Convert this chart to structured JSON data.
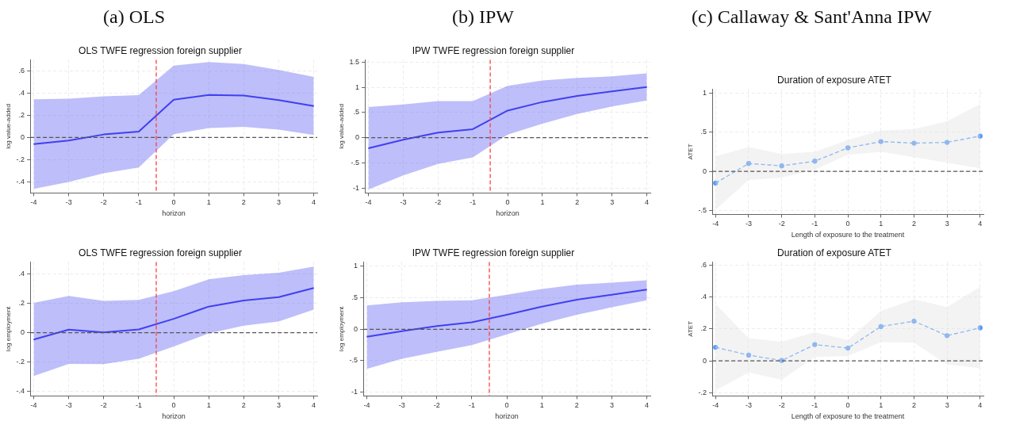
{
  "chart_data": [
    {
      "type": "line",
      "annotations": [
        "(a) OLS"
      ],
      "title": "OLS TWFE regression foreign supplier",
      "xlabel": "horizon",
      "ylabel": "log value-added",
      "x": [
        -4,
        -3,
        -2,
        -1,
        0,
        1,
        2,
        3,
        4
      ],
      "series": [
        {
          "color": "#1a1aee",
          "values": [
            -0.06,
            -0.027,
            0.027,
            0.053,
            0.34,
            0.383,
            0.378,
            0.337,
            0.284
          ],
          "lower": [
            -0.463,
            -0.4,
            -0.322,
            -0.27,
            0.029,
            0.085,
            0.095,
            0.07,
            0.022
          ],
          "upper": [
            0.344,
            0.349,
            0.371,
            0.381,
            0.647,
            0.679,
            0.662,
            0.608,
            0.545
          ]
        }
      ],
      "xlim": [
        -4.1,
        4.1
      ],
      "xticks": [
        -4,
        -3,
        -2,
        -1,
        0,
        1,
        2,
        3,
        4
      ],
      "ylim": [
        -0.5,
        0.7
      ],
      "yticks": [
        {
          "value": -0.4,
          "label": "-.4"
        },
        {
          "value": -0.2,
          "label": "-.2"
        },
        0,
        {
          "value": 0.2,
          "label": ".2"
        },
        {
          "value": 0.4,
          "label": ".4"
        },
        {
          "value": 0.6,
          "label": ".6"
        }
      ],
      "ref_lines": [
        {
          "axis": "y",
          "value": 0,
          "color": "#555555",
          "line_style": "dashed"
        },
        {
          "axis": "x",
          "value": -0.5,
          "color": "#ff4040",
          "line_style": "dashed"
        }
      ],
      "grid": true,
      "legend": false,
      "marker": "none",
      "line_style": "solid"
    },
    {
      "type": "line",
      "annotations": [
        "(b) IPW"
      ],
      "title": "IPW TWFE regression foreign supplier",
      "xlabel": "horizon",
      "ylabel": "log value-added",
      "x": [
        -4,
        -3,
        -2,
        -1,
        0,
        1,
        2,
        3,
        4
      ],
      "series": [
        {
          "color": "#1a1aee",
          "values": [
            -0.21,
            -0.04,
            0.1,
            0.17,
            0.54,
            0.71,
            0.83,
            0.92,
            1.01
          ],
          "lower": [
            -1.03,
            -0.75,
            -0.52,
            -0.39,
            0.06,
            0.28,
            0.47,
            0.62,
            0.74
          ],
          "upper": [
            0.61,
            0.66,
            0.73,
            0.73,
            1.03,
            1.14,
            1.19,
            1.22,
            1.28
          ]
        }
      ],
      "xlim": [
        -4.1,
        4.1
      ],
      "xticks": [
        -4,
        -3,
        -2,
        -1,
        0,
        1,
        2,
        3,
        4
      ],
      "ylim": [
        -1.1,
        1.55
      ],
      "yticks": [
        -1,
        {
          "value": -0.5,
          "label": "-.5"
        },
        0,
        {
          "value": 0.5,
          "label": ".5"
        },
        1,
        1.5
      ],
      "ref_lines": [
        {
          "axis": "y",
          "value": 0,
          "color": "#555555",
          "line_style": "dashed"
        },
        {
          "axis": "x",
          "value": -0.5,
          "color": "#ff4040",
          "line_style": "dashed"
        }
      ],
      "grid": true,
      "legend": false,
      "marker": "none",
      "line_style": "solid"
    },
    {
      "type": "line",
      "annotations": [
        "(c) Callaway & Sant'Anna IPW"
      ],
      "title": "Duration of exposure ATET",
      "xlabel": "Length of exposure to the treatment",
      "ylabel": "ATET",
      "x": [
        -4,
        -3,
        -2,
        -1,
        0,
        1,
        2,
        3,
        4
      ],
      "series": [
        {
          "color": "#5a9cf8",
          "values": [
            -0.15,
            0.1,
            0.07,
            0.13,
            0.3,
            0.38,
            0.36,
            0.37,
            0.45
          ],
          "lower": [
            -0.49,
            -0.11,
            -0.08,
            0.02,
            0.21,
            0.25,
            0.18,
            0.11,
            0.04
          ],
          "upper": [
            0.19,
            0.31,
            0.22,
            0.25,
            0.4,
            0.52,
            0.54,
            0.64,
            0.86
          ]
        }
      ],
      "xlim": [
        -4.1,
        4.1
      ],
      "xticks": [
        -4,
        -3,
        -2,
        -1,
        0,
        1,
        2,
        3,
        4
      ],
      "ylim": [
        -0.55,
        1.05
      ],
      "yticks": [
        {
          "value": -0.5,
          "label": "-.5"
        },
        0,
        {
          "value": 0.5,
          "label": ".5"
        },
        1
      ],
      "ref_lines": [
        {
          "axis": "y",
          "value": 0,
          "color": "#555555",
          "line_style": "dashed"
        }
      ],
      "grid": true,
      "legend": false,
      "marker": "circle",
      "line_style": "dashed"
    },
    {
      "type": "line",
      "title": "OLS TWFE regression foreign supplier",
      "xlabel": "horizon",
      "ylabel": "log employment",
      "x": [
        -4,
        -3,
        -2,
        -1,
        0,
        1,
        2,
        3,
        4
      ],
      "series": [
        {
          "color": "#1a1aee",
          "values": [
            -0.047,
            0.02,
            0.002,
            0.022,
            0.094,
            0.177,
            0.218,
            0.241,
            0.303
          ],
          "lower": [
            -0.294,
            -0.213,
            -0.214,
            -0.178,
            -0.094,
            -0.005,
            0.047,
            0.076,
            0.157
          ],
          "upper": [
            0.202,
            0.249,
            0.216,
            0.222,
            0.281,
            0.362,
            0.391,
            0.407,
            0.449
          ]
        }
      ],
      "xlim": [
        -4.1,
        4.1
      ],
      "xticks": [
        -4,
        -3,
        -2,
        -1,
        0,
        1,
        2,
        3,
        4
      ],
      "ylim": [
        -0.43,
        0.48
      ],
      "yticks": [
        {
          "value": -0.4,
          "label": "-.4"
        },
        {
          "value": -0.2,
          "label": "-.2"
        },
        0,
        {
          "value": 0.2,
          "label": ".2"
        },
        {
          "value": 0.4,
          "label": ".4"
        }
      ],
      "ref_lines": [
        {
          "axis": "y",
          "value": 0,
          "color": "#555555",
          "line_style": "dashed"
        },
        {
          "axis": "x",
          "value": -0.5,
          "color": "#ff4040",
          "line_style": "dashed"
        }
      ],
      "grid": true,
      "legend": false,
      "marker": "none",
      "line_style": "solid"
    },
    {
      "type": "line",
      "title": "IPW TWFE regression foreign supplier",
      "xlabel": "horizon",
      "ylabel": "log employment",
      "x": [
        -4,
        -3,
        -2,
        -1,
        0,
        1,
        2,
        3,
        4
      ],
      "series": [
        {
          "color": "#1a1aee",
          "values": [
            -0.12,
            -0.03,
            0.05,
            0.11,
            0.23,
            0.36,
            0.47,
            0.55,
            0.63
          ],
          "lower": [
            -0.63,
            -0.47,
            -0.36,
            -0.25,
            -0.08,
            0.09,
            0.23,
            0.35,
            0.46
          ],
          "upper": [
            0.38,
            0.43,
            0.45,
            0.46,
            0.55,
            0.64,
            0.71,
            0.74,
            0.78
          ]
        }
      ],
      "xlim": [
        -4.1,
        4.1
      ],
      "xticks": [
        -4,
        -3,
        -2,
        -1,
        0,
        1,
        2,
        3,
        4
      ],
      "ylim": [
        -1.06,
        1.07
      ],
      "yticks": [
        -1,
        {
          "value": -0.5,
          "label": "-.5"
        },
        0,
        {
          "value": 0.5,
          "label": ".5"
        },
        1
      ],
      "ref_lines": [
        {
          "axis": "y",
          "value": 0,
          "color": "#555555",
          "line_style": "dashed"
        },
        {
          "axis": "x",
          "value": -0.5,
          "color": "#ff4040",
          "line_style": "dashed"
        }
      ],
      "grid": true,
      "legend": false,
      "marker": "none",
      "line_style": "solid"
    },
    {
      "type": "line",
      "title": "Duration of exposure ATET",
      "xlabel": "Length of exposure to the treatment",
      "ylabel": "ATET",
      "x": [
        -4,
        -3,
        -2,
        -1,
        0,
        1,
        2,
        3,
        4
      ],
      "series": [
        {
          "color": "#5a9cf8",
          "values": [
            0.085,
            0.036,
            0.002,
            0.102,
            0.08,
            0.215,
            0.249,
            0.158,
            0.207
          ],
          "lower": [
            -0.186,
            -0.073,
            -0.119,
            0.024,
            0.031,
            0.117,
            0.114,
            -0.022,
            -0.047
          ],
          "upper": [
            0.356,
            0.142,
            0.12,
            0.18,
            0.13,
            0.312,
            0.386,
            0.337,
            0.464
          ]
        }
      ],
      "xlim": [
        -4.1,
        4.1
      ],
      "xticks": [
        -4,
        -3,
        -2,
        -1,
        0,
        1,
        2,
        3,
        4
      ],
      "ylim": [
        -0.22,
        0.62
      ],
      "yticks": [
        {
          "value": -0.2,
          "label": "-.2"
        },
        0,
        {
          "value": 0.2,
          "label": ".2"
        },
        {
          "value": 0.4,
          "label": ".4"
        },
        {
          "value": 0.6,
          "label": ".6"
        }
      ],
      "ref_lines": [
        {
          "axis": "y",
          "value": 0,
          "color": "#555555",
          "line_style": "dashed"
        }
      ],
      "grid": true,
      "legend": false,
      "marker": "circle",
      "line_style": "dashed"
    }
  ]
}
